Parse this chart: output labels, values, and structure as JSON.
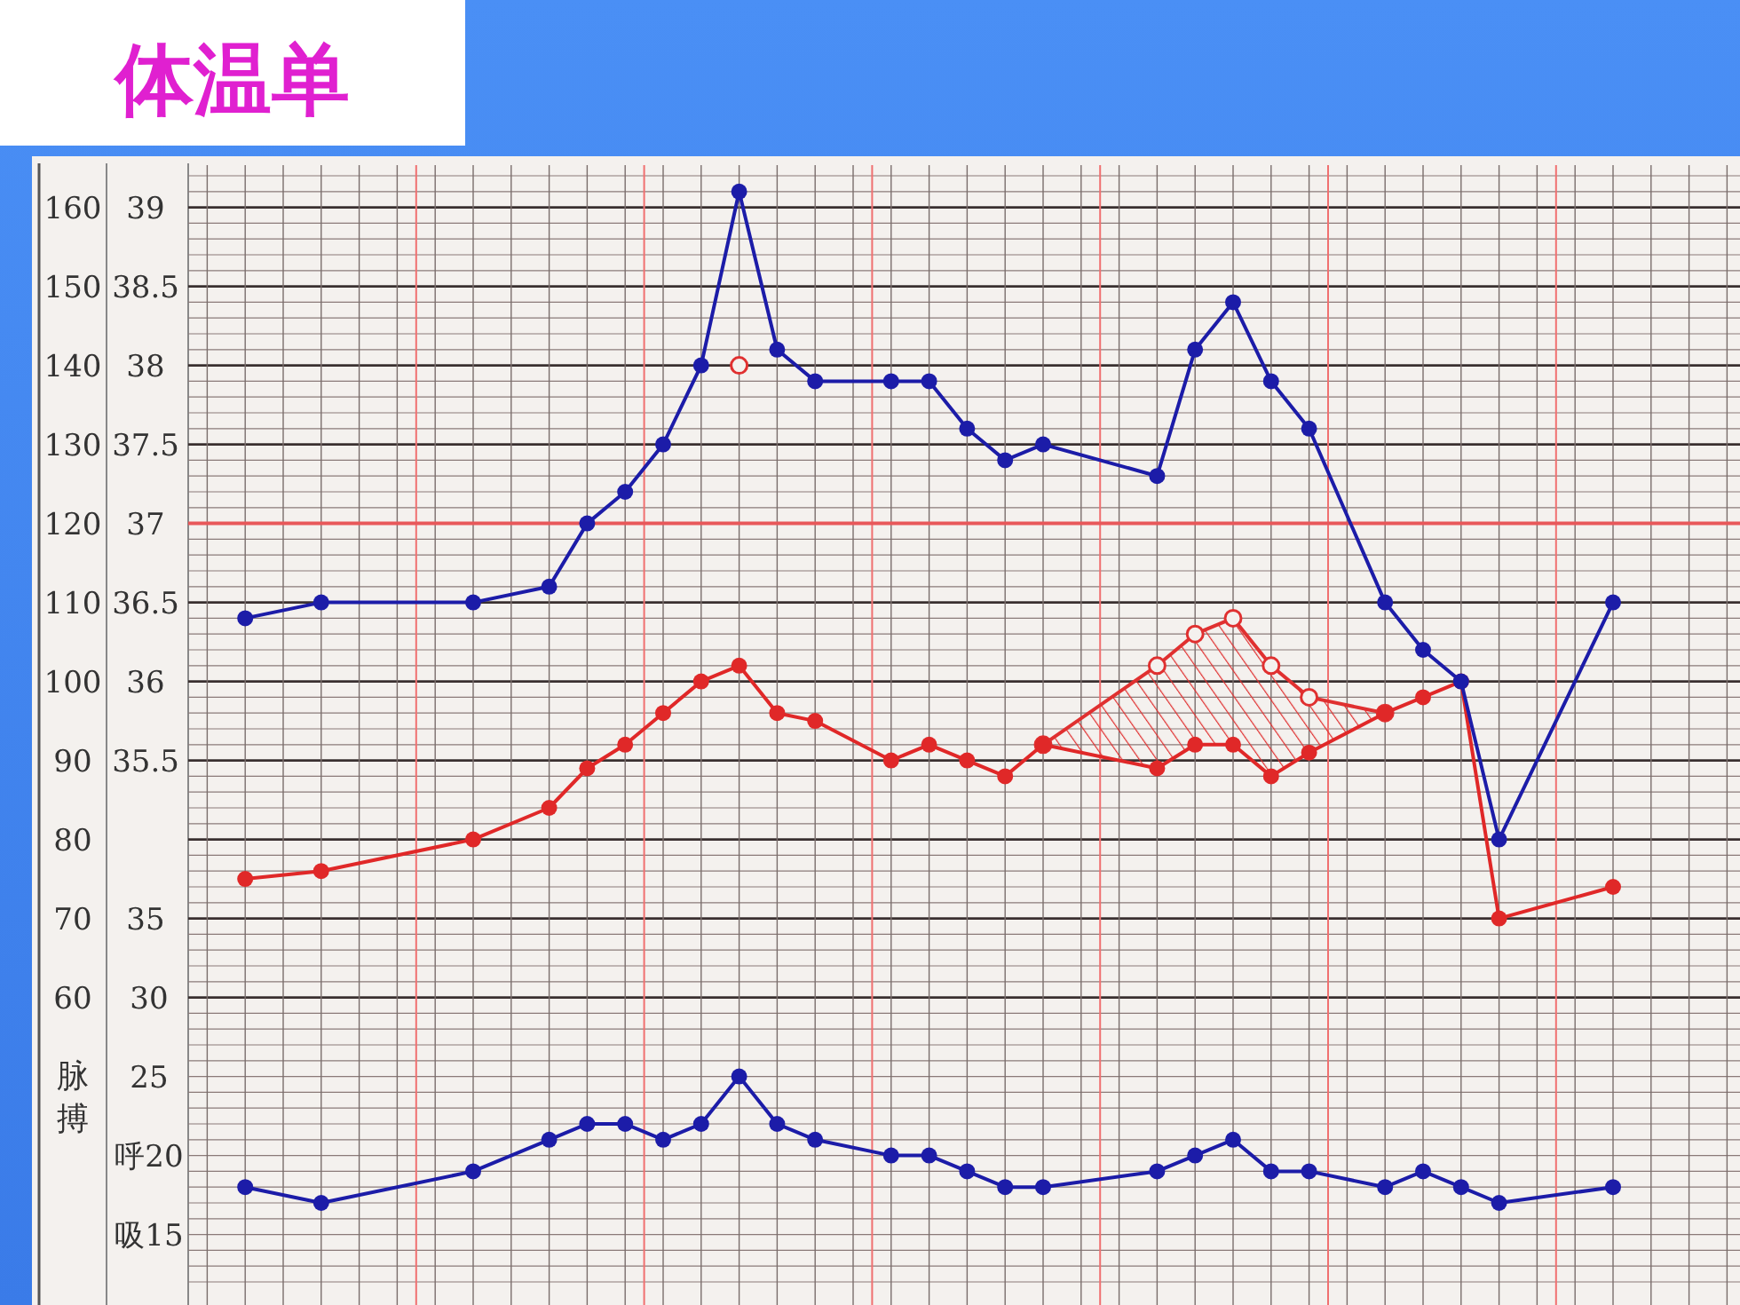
{
  "chart_data": {
    "type": "line",
    "title": "体温单",
    "ylabel": "脉搏",
    "categories": [
      null,
      null,
      null,
      null,
      null,
      null,
      null,
      null,
      null,
      null,
      null,
      null,
      null,
      null,
      null,
      null,
      null,
      null,
      null,
      null,
      null,
      null,
      null,
      null,
      null,
      null,
      null,
      null,
      null,
      null,
      null,
      null,
      null,
      null,
      null,
      null,
      null
    ],
    "ylim": [
      24,
      164
    ],
    "yticks": [
      60,
      70,
      80,
      90,
      100,
      110,
      120,
      130,
      140,
      150,
      160
    ],
    "y2lim": [
      32.2,
      39.2
    ],
    "y2ticks": [
      {
        "value": 34.5,
        "label": "35"
      },
      35.5,
      36,
      36.5,
      37,
      37.5,
      38,
      38.5,
      39
    ],
    "y3lim": [
      12,
      82
    ],
    "y3ticks": [
      {
        "value": 15,
        "label": "吸15"
      },
      {
        "value": 20,
        "label": "呼20"
      },
      25,
      30
    ],
    "grid": true,
    "marker": "circle",
    "ref_lines": [
      {
        "axis": "y2",
        "value": 37,
        "color": "#e8585a"
      }
    ],
    "series": [
      {
        "axis": "y2",
        "color": "#1c1ca8",
        "values": [
          36.4,
          null,
          36.5,
          null,
          null,
          null,
          36.5,
          null,
          36.6,
          37.0,
          37.2,
          37.5,
          38.0,
          39.1,
          38.1,
          37.9,
          null,
          37.9,
          37.9,
          37.6,
          37.4,
          37.5,
          null,
          null,
          37.3,
          38.1,
          38.4,
          37.9,
          37.6,
          null,
          36.5,
          36.2,
          36.0,
          35.0,
          null,
          null,
          36.5
        ]
      },
      {
        "axis": "y2",
        "type": "scatter",
        "color": "#e03030",
        "values": [
          null,
          null,
          null,
          null,
          null,
          null,
          null,
          null,
          null,
          null,
          null,
          null,
          null,
          38.0,
          null,
          null,
          null,
          null,
          null,
          null,
          null,
          null,
          null,
          null,
          null,
          null,
          null,
          null,
          null,
          null,
          null,
          null,
          null,
          null,
          null,
          null,
          null
        ]
      },
      {
        "axis": "y",
        "color": "#e02828",
        "values": [
          75,
          null,
          76,
          null,
          null,
          null,
          80,
          null,
          84,
          89,
          92,
          96,
          100,
          102,
          96,
          95,
          null,
          90,
          92,
          90,
          88,
          92,
          null,
          null,
          89,
          92,
          92,
          88,
          91,
          null,
          96,
          98,
          100,
          70,
          null,
          null,
          74
        ]
      },
      {
        "axis": "y",
        "color": "#e03030",
        "values": [
          null,
          null,
          null,
          null,
          null,
          null,
          null,
          null,
          null,
          null,
          null,
          null,
          null,
          null,
          null,
          null,
          null,
          null,
          null,
          null,
          null,
          92,
          null,
          null,
          102,
          106,
          108,
          102,
          98,
          null,
          96,
          null,
          null,
          null,
          null,
          null,
          null
        ],
        "lower": [
          null,
          null,
          null,
          null,
          null,
          null,
          null,
          null,
          null,
          null,
          null,
          null,
          null,
          null,
          null,
          null,
          null,
          null,
          null,
          null,
          null,
          92,
          null,
          null,
          89,
          92,
          92,
          88,
          91,
          null,
          96,
          null,
          null,
          null,
          null,
          null,
          null
        ],
        "upper": [
          null,
          null,
          null,
          null,
          null,
          null,
          null,
          null,
          null,
          null,
          null,
          null,
          null,
          null,
          null,
          null,
          null,
          null,
          null,
          null,
          null,
          92,
          null,
          null,
          102,
          106,
          108,
          102,
          98,
          null,
          96,
          null,
          null,
          null,
          null,
          null,
          null
        ]
      },
      {
        "axis": "y3",
        "color": "#1c1ca8",
        "values": [
          18,
          null,
          17,
          null,
          null,
          null,
          19,
          null,
          21,
          22,
          22,
          21,
          22,
          25,
          22,
          21,
          null,
          20,
          20,
          19,
          18,
          18,
          null,
          null,
          19,
          20,
          21,
          19,
          19,
          null,
          18,
          19,
          18,
          17,
          null,
          null,
          18
        ]
      }
    ]
  }
}
